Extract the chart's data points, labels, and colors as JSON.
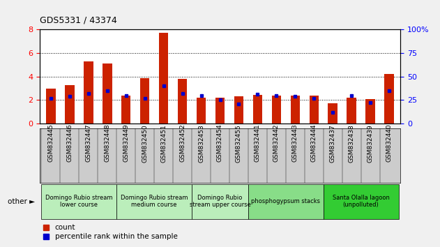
{
  "title": "GDS5331 / 43374",
  "samples": [
    "GSM832445",
    "GSM832446",
    "GSM832447",
    "GSM832448",
    "GSM832449",
    "GSM832450",
    "GSM832451",
    "GSM832452",
    "GSM832453",
    "GSM832454",
    "GSM832455",
    "GSM832441",
    "GSM832442",
    "GSM832443",
    "GSM832444",
    "GSM832437",
    "GSM832438",
    "GSM832439",
    "GSM832440"
  ],
  "count_values": [
    3.0,
    3.3,
    5.3,
    5.1,
    2.4,
    3.85,
    7.75,
    3.8,
    2.2,
    2.2,
    2.3,
    2.45,
    2.35,
    2.35,
    2.35,
    1.7,
    2.2,
    2.1,
    4.2
  ],
  "percentile_values": [
    27,
    29,
    32,
    35,
    30,
    27,
    40,
    32,
    30,
    25,
    21,
    31,
    30,
    29,
    27,
    12,
    30,
    22,
    35
  ],
  "ylim_left": [
    0,
    8
  ],
  "ylim_right": [
    0,
    100
  ],
  "yticks_left": [
    0,
    2,
    4,
    6,
    8
  ],
  "yticks_right": [
    0,
    25,
    50,
    75,
    100
  ],
  "bar_color": "#cc2200",
  "marker_color": "#0000cc",
  "bg_color": "#ffffff",
  "xtick_bg_color": "#cccccc",
  "groups": [
    {
      "label": "Domingo Rubio stream\nlower course",
      "start": 0,
      "end": 4,
      "color": "#bbeebb"
    },
    {
      "label": "Domingo Rubio stream\nmedium course",
      "start": 4,
      "end": 8,
      "color": "#bbeebb"
    },
    {
      "label": "Domingo Rubio\nstream upper course",
      "start": 8,
      "end": 11,
      "color": "#bbeebb"
    },
    {
      "label": "phosphogypsum stacks",
      "start": 11,
      "end": 15,
      "color": "#88dd88"
    },
    {
      "label": "Santa Olalla lagoon\n(unpolluted)",
      "start": 15,
      "end": 19,
      "color": "#33cc33"
    }
  ],
  "legend_items": [
    {
      "label": "count",
      "color": "#cc2200"
    },
    {
      "label": "percentile rank within the sample",
      "color": "#0000cc"
    }
  ],
  "bar_width": 0.5,
  "figsize": [
    6.31,
    3.54
  ],
  "dpi": 100
}
